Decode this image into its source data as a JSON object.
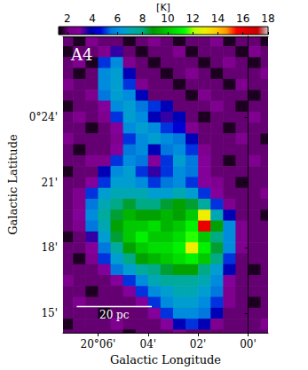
{
  "chart_data": {
    "type": "heatmap",
    "xlabel": "Galactic Longitude",
    "ylabel": "Galactic Latitude",
    "xlim": [
      7.4,
      -0.8
    ],
    "ylim": [
      14.1,
      27.7
    ],
    "xticks": [
      {
        "value": 6,
        "label": "20°06'"
      },
      {
        "value": 4,
        "label": "04'"
      },
      {
        "value": 2,
        "label": "02'"
      },
      {
        "value": 0,
        "label": "00'"
      }
    ],
    "yticks": [
      {
        "value": 15,
        "label": "15'"
      },
      {
        "value": 18,
        "label": "18'"
      },
      {
        "value": 21,
        "label": "21'"
      },
      {
        "value": 24,
        "label": "0°24'"
      }
    ],
    "x": [
      7.25,
      6.75,
      6.25,
      5.75,
      5.25,
      4.75,
      4.25,
      3.75,
      3.25,
      2.75,
      2.25,
      1.75,
      1.25,
      0.75,
      0.25,
      -0.25,
      -0.75
    ],
    "y": [
      27.5,
      27,
      26.5,
      26,
      25.5,
      25,
      24.5,
      24,
      23.5,
      23,
      22.5,
      22,
      21.5,
      21,
      20.5,
      20,
      19.5,
      19,
      18.5,
      18,
      17.5,
      17,
      16.5,
      16,
      15.5,
      15,
      14.5,
      14
    ],
    "z": [
      [
        2,
        1.5,
        2.5,
        2,
        2,
        1.5,
        2,
        2.5,
        2,
        1.5,
        2,
        2,
        2.5,
        1.5,
        2,
        2,
        1.5
      ],
      [
        1.5,
        2,
        2,
        2.5,
        3.5,
        2,
        1.5,
        2,
        2,
        2.5,
        1.5,
        2,
        2,
        2,
        1.5,
        2.5,
        2
      ],
      [
        2,
        2.5,
        1.5,
        5,
        6,
        2.5,
        2,
        1.5,
        2,
        2,
        2,
        1.5,
        2,
        2.5,
        2,
        1.5,
        2
      ],
      [
        2,
        1.5,
        2,
        6,
        6.5,
        4,
        2,
        2,
        1.5,
        2,
        2.5,
        2,
        1.5,
        2,
        2,
        2,
        2.5
      ],
      [
        2.5,
        2,
        2,
        6,
        6.5,
        5,
        2.5,
        2,
        2,
        1.5,
        2,
        2,
        2,
        1.5,
        2.5,
        2,
        2
      ],
      [
        2,
        2,
        2.5,
        5.5,
        6.5,
        6,
        4,
        2,
        2,
        2,
        1.5,
        2.5,
        2,
        2,
        2,
        1.5,
        2
      ],
      [
        1.5,
        2,
        2,
        3,
        6,
        6.5,
        5.5,
        5,
        4,
        2,
        2,
        2,
        2.5,
        2,
        1.5,
        2,
        2
      ],
      [
        2,
        2.5,
        2,
        2.5,
        5,
        6.5,
        6,
        4,
        3.5,
        4,
        2,
        1.5,
        2,
        2,
        2,
        2.5,
        2
      ],
      [
        2,
        2,
        1.5,
        2,
        3,
        6,
        6.5,
        6,
        5,
        4.5,
        2.5,
        2,
        2,
        1.5,
        2,
        2,
        2
      ],
      [
        2.5,
        2,
        2,
        2,
        2.5,
        5,
        6,
        6.5,
        6,
        5.5,
        4,
        2,
        2,
        2,
        2.5,
        2,
        1.5
      ],
      [
        2,
        1.5,
        2,
        2,
        3,
        5.5,
        6,
        4,
        5.5,
        6,
        5,
        2.5,
        2,
        2,
        2,
        2,
        2
      ],
      [
        2,
        2,
        2.5,
        2.5,
        5,
        6,
        5.5,
        3,
        5,
        6.5,
        5.5,
        3,
        2,
        1.5,
        2,
        2.5,
        2
      ],
      [
        1.5,
        2,
        2,
        4,
        6,
        6.5,
        5,
        3.5,
        5,
        6,
        5.5,
        3,
        2,
        2,
        2,
        2,
        2
      ],
      [
        2,
        2,
        3,
        5,
        6.5,
        6.5,
        6,
        5,
        5.5,
        6,
        5,
        3,
        2.5,
        2,
        1.5,
        2,
        2
      ],
      [
        2,
        2.5,
        5,
        6.5,
        7,
        7,
        7,
        6.5,
        6.5,
        7,
        6.5,
        5,
        3,
        2,
        2,
        2,
        2.5
      ],
      [
        2,
        2.5,
        5.5,
        7,
        8,
        8.5,
        8,
        8,
        8.5,
        9,
        8.5,
        7.5,
        5,
        2.5,
        2,
        2,
        2
      ],
      [
        2,
        3,
        6,
        7.5,
        8.5,
        9.5,
        9,
        9,
        9.5,
        9,
        10,
        13,
        7,
        4,
        2,
        2,
        1.5
      ],
      [
        2,
        2.5,
        5.5,
        7,
        9,
        10,
        10,
        10.5,
        9.5,
        10,
        11,
        16,
        9,
        6,
        2.5,
        2,
        2
      ],
      [
        1.5,
        2,
        3.5,
        6.5,
        8.5,
        10,
        11,
        10,
        10,
        10.5,
        11.5,
        10,
        8,
        6,
        2.5,
        2,
        2
      ],
      [
        2,
        2,
        3,
        5.5,
        7.5,
        9,
        10,
        10.5,
        10.5,
        11,
        13,
        11,
        8.5,
        6,
        2.5,
        2,
        2
      ],
      [
        2,
        1.5,
        2.5,
        5,
        6.5,
        8,
        9,
        9.5,
        10,
        10.5,
        11,
        10,
        8,
        5,
        2,
        2,
        2
      ],
      [
        2,
        2,
        2,
        3,
        5.5,
        6.5,
        7.5,
        8,
        8.5,
        9,
        9,
        8,
        6.5,
        4,
        2,
        1.5,
        2
      ],
      [
        2.5,
        2,
        2,
        2,
        3,
        5,
        6,
        7,
        7.5,
        7.5,
        7.5,
        7,
        6,
        3,
        2,
        2,
        2
      ],
      [
        2,
        2,
        1.5,
        2,
        2,
        3,
        5,
        6,
        6.5,
        7,
        7,
        6.5,
        5.5,
        2.5,
        2,
        2,
        2
      ],
      [
        2,
        2.5,
        2,
        2,
        2,
        2,
        3,
        5,
        6,
        6.5,
        6.5,
        6,
        5,
        2.5,
        2,
        1.5,
        2
      ],
      [
        2,
        2,
        2,
        1.5,
        2,
        2,
        2,
        3,
        5,
        6,
        6,
        5.5,
        4,
        2,
        2,
        2,
        2
      ],
      [
        1.5,
        2,
        2,
        2,
        2.5,
        2,
        2,
        2,
        3,
        4,
        5,
        4,
        2.5,
        2,
        2,
        2,
        2.5
      ],
      [
        2,
        2,
        2,
        2,
        2,
        1.5,
        2,
        2,
        2,
        2.5,
        2,
        2,
        2,
        2,
        2,
        2,
        2
      ]
    ],
    "colorbar": {
      "label": "[K]",
      "lim": [
        1.3,
        18
      ],
      "ticks": [
        2,
        4,
        6,
        8,
        10,
        12,
        14,
        16,
        18
      ]
    },
    "annotations": [
      {
        "text": "A4"
      }
    ],
    "scale_bar": {
      "label": "20 pc",
      "x": [
        6.85,
        3.85
      ],
      "y": 15.3
    }
  }
}
